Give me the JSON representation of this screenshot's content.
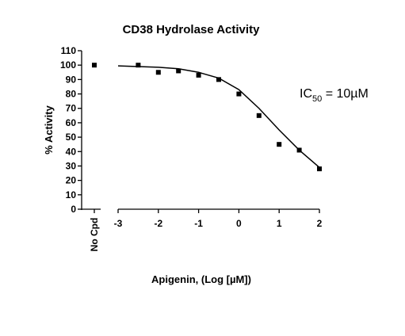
{
  "chart_data": {
    "type": "scatter",
    "title": "CD38 Hydrolase Activity",
    "y_label": "% Activity",
    "x_label": "Apigenin, (Log [µM])",
    "annotation": [
      "IC",
      "50",
      " = 10µM"
    ],
    "categories": [
      "No Cpd"
    ],
    "control_values": [
      100
    ],
    "x": [
      -2.5,
      -2,
      -1.5,
      -1,
      -0.5,
      0,
      0.5,
      1,
      1.5,
      2
    ],
    "values": [
      100,
      95,
      96,
      93,
      90,
      80,
      65,
      45,
      41,
      28
    ],
    "curve": {
      "x": [
        -3,
        -2.5,
        -2,
        -1.5,
        -1,
        -0.5,
        0,
        0.5,
        1,
        1.5,
        2
      ],
      "values": [
        99.5,
        99,
        98.5,
        97.5,
        95,
        91,
        83,
        70,
        55,
        41,
        29
      ]
    },
    "color": "#000000",
    "xlim": [
      -3,
      2
    ],
    "xticks": [
      -3,
      -2,
      -1,
      0,
      1,
      2
    ],
    "ylim": [
      0,
      110
    ],
    "yticks": [
      0,
      10,
      20,
      30,
      40,
      50,
      60,
      70,
      80,
      90,
      100,
      110
    ]
  }
}
